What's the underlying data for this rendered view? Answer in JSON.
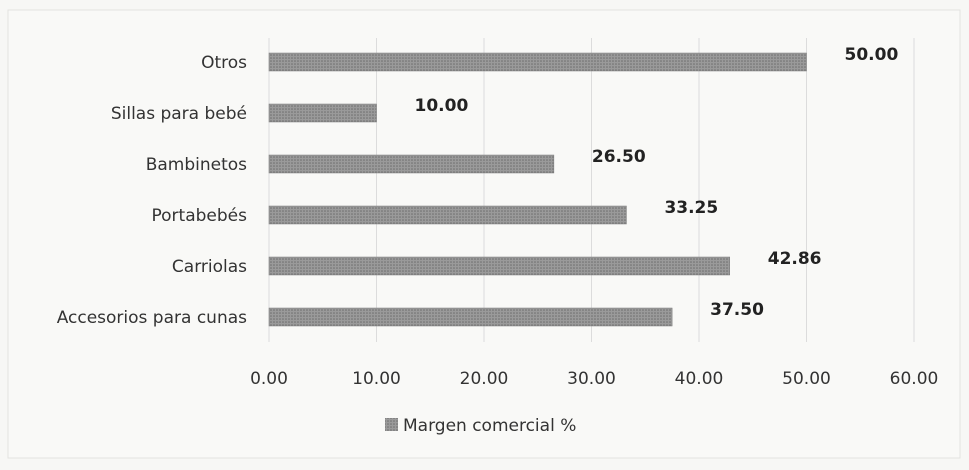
{
  "chart_data": {
    "type": "bar",
    "orientation": "horizontal",
    "categories": [
      "Otros",
      "Sillas para bebé",
      "Bambinetos",
      "Portabebés",
      "Carriolas",
      "Accesorios para cunas"
    ],
    "series": [
      {
        "name": "Margen comercial %",
        "values": [
          50.0,
          10.0,
          26.5,
          33.25,
          42.86,
          37.5
        ],
        "value_labels": [
          "50.00",
          "10.00",
          "26.50",
          "33.25",
          "42.86",
          "37.50"
        ]
      }
    ],
    "xlim": [
      0,
      60
    ],
    "x_ticks": [
      0,
      10,
      20,
      30,
      40,
      50,
      60
    ],
    "x_tick_labels": [
      "0.00",
      "10.00",
      "20.00",
      "30.00",
      "40.00",
      "50.00",
      "60.00"
    ],
    "grid": "vertical",
    "legend_position": "bottom",
    "bar_color": "#8a8a8a",
    "grid_color": "#dcdcdc"
  }
}
